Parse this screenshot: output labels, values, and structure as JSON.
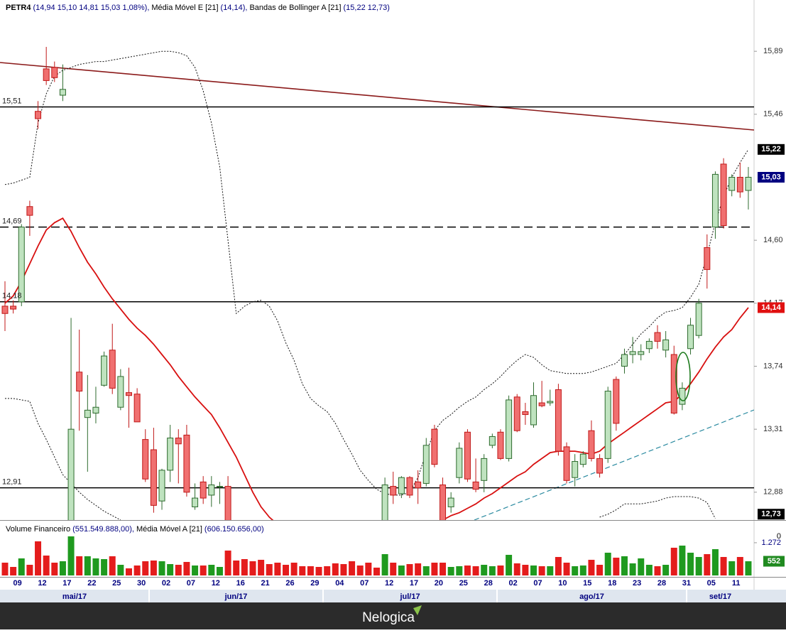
{
  "header": {
    "symbol": "PETR4",
    "quote": "(14,94  15,10  14,81  15,03  1,08%),"
  },
  "chart_data": [
    {
      "type": "candlestick",
      "categories": [
        null,
        "09",
        null,
        null,
        "12",
        null,
        null,
        "17",
        null,
        null,
        "22",
        null,
        null,
        "25",
        null,
        null,
        "30",
        null,
        null,
        "02",
        null,
        null,
        "07",
        null,
        null,
        "12",
        null,
        null,
        "16",
        null,
        null,
        "21",
        null,
        null,
        "26",
        null,
        null,
        "29",
        null,
        null,
        "04",
        null,
        null,
        "07",
        null,
        null,
        "12",
        null,
        null,
        "17",
        null,
        null,
        "20",
        null,
        null,
        "25",
        null,
        null,
        "28",
        null,
        null,
        "02",
        null,
        null,
        "07",
        null,
        null,
        "10",
        null,
        null,
        "15",
        null,
        null,
        "18",
        null,
        null,
        "23",
        null,
        null,
        "28",
        null,
        null,
        "31",
        null,
        null,
        "05",
        null,
        null,
        "11",
        null,
        null
      ],
      "months": [
        "mai/17",
        "jun/17",
        "jul/17",
        "ago/17",
        "set/17"
      ],
      "open": [
        14.15,
        14.15,
        14.18,
        14.83,
        15.48,
        15.77,
        15.78,
        15.59,
        12.5,
        13.7,
        13.39,
        13.42,
        13.61,
        13.85,
        13.46,
        13.56,
        13.55,
        13.24,
        13.17,
        12.82,
        13.03,
        13.25,
        13.27,
        12.78,
        12.95,
        12.86,
        12.92,
        12.92,
        null,
        null,
        null,
        null,
        null,
        null,
        null,
        null,
        null,
        null,
        null,
        null,
        null,
        null,
        null,
        null,
        null,
        null,
        12.55,
        12.92,
        12.87,
        12.98,
        12.95,
        12.94,
        13.31,
        12.93,
        12.78,
        12.98,
        13.29,
        12.95,
        12.96,
        13.2,
        13.29,
        13.11,
        13.53,
        13.43,
        13.34,
        13.49,
        13.49,
        13.58,
        13.19,
        12.98,
        13.07,
        13.3,
        13.11,
        13.11,
        13.65,
        13.74,
        13.82,
        13.82,
        13.86,
        13.97,
        13.85,
        13.82,
        13.48,
        13.86,
        13.95,
        14.55,
        14.69,
        15.12,
        14.94,
        15.03,
        14.94
      ],
      "high": [
        14.32,
        14.19,
        14.71,
        14.87,
        15.55,
        15.92,
        15.82,
        15.8,
        14.07,
        13.99,
        13.68,
        13.6,
        13.84,
        14.03,
        13.72,
        13.73,
        13.59,
        13.31,
        13.32,
        13.04,
        13.34,
        13.31,
        13.34,
        12.94,
        12.99,
        12.99,
        12.95,
        12.99,
        null,
        null,
        null,
        null,
        null,
        null,
        null,
        null,
        null,
        null,
        null,
        null,
        null,
        null,
        null,
        null,
        null,
        null,
        12.98,
        13.02,
        12.99,
        12.99,
        13.03,
        13.25,
        13.34,
        12.98,
        12.88,
        13.22,
        13.31,
        13.11,
        13.14,
        13.28,
        13.31,
        13.54,
        13.55,
        13.49,
        13.63,
        13.64,
        13.58,
        13.62,
        13.22,
        13.14,
        13.16,
        13.37,
        13.14,
        13.6,
        13.67,
        13.86,
        13.94,
        13.89,
        13.93,
        14.02,
        13.98,
        13.88,
        13.63,
        14.07,
        14.2,
        14.64,
        15.07,
        15.16,
        15.05,
        15.13,
        15.1
      ],
      "low": [
        13.98,
        14.1,
        14.15,
        14.63,
        15.36,
        15.66,
        15.68,
        15.55,
        12.4,
        13.3,
        13.02,
        13.35,
        13.6,
        13.55,
        13.44,
        13.32,
        13.36,
        12.95,
        12.74,
        12.76,
        12.95,
        12.94,
        12.85,
        12.76,
        12.8,
        12.78,
        12.8,
        12.5,
        null,
        null,
        null,
        null,
        null,
        null,
        null,
        null,
        null,
        null,
        null,
        null,
        null,
        null,
        null,
        null,
        null,
        null,
        12.5,
        12.8,
        12.84,
        12.84,
        12.8,
        12.92,
        13.05,
        12.5,
        12.74,
        12.94,
        12.95,
        12.88,
        12.88,
        13.18,
        13.1,
        13.09,
        13.29,
        13.34,
        13.32,
        13.46,
        13.47,
        13.13,
        12.94,
        12.92,
        13.05,
        13.09,
        12.98,
        13.08,
        13.3,
        13.69,
        13.76,
        13.78,
        13.83,
        13.86,
        13.8,
        13.41,
        13.44,
        13.82,
        13.93,
        14.27,
        14.61,
        14.68,
        14.9,
        14.89,
        14.81
      ],
      "close": [
        14.1,
        14.13,
        14.69,
        14.77,
        15.43,
        15.69,
        15.71,
        15.63,
        13.31,
        13.57,
        13.44,
        13.46,
        13.81,
        13.59,
        13.67,
        13.54,
        13.36,
        12.97,
        12.79,
        13.03,
        13.25,
        13.21,
        12.88,
        12.84,
        12.84,
        12.93,
        12.92,
        12.55,
        null,
        null,
        null,
        null,
        null,
        null,
        null,
        null,
        null,
        null,
        null,
        null,
        null,
        null,
        null,
        null,
        null,
        null,
        12.93,
        12.86,
        12.98,
        12.86,
        12.91,
        13.2,
        13.07,
        12.55,
        12.84,
        13.18,
        12.97,
        12.9,
        13.11,
        13.26,
        13.11,
        13.51,
        13.3,
        13.41,
        13.54,
        13.47,
        13.5,
        13.16,
        12.96,
        13.09,
        13.14,
        13.11,
        13.01,
        13.57,
        13.35,
        13.82,
        13.84,
        13.84,
        13.91,
        13.91,
        13.92,
        13.42,
        13.59,
        14.02,
        14.17,
        14.4,
        15.05,
        14.7,
        15.03,
        14.93,
        15.03
      ],
      "up_color": "#bfe3bf",
      "up_edge": "#2e6b2e",
      "down_color": "#f07070",
      "down_edge": "#c01818",
      "series": [
        {
          "name": "Média Móvel E [21]",
          "value_label": "(14,14),",
          "color": "#d81010",
          "values": [
            14.17,
            14.22,
            14.32,
            14.44,
            14.56,
            14.67,
            14.72,
            14.75,
            14.66,
            14.55,
            14.45,
            14.37,
            14.28,
            14.2,
            14.13,
            14.06,
            14.0,
            13.95,
            13.89,
            13.82,
            13.75,
            13.67,
            13.6,
            13.53,
            13.47,
            13.41,
            13.32,
            13.22,
            13.12,
            13.0,
            12.88,
            12.78,
            12.71,
            12.66,
            null,
            null,
            null,
            null,
            null,
            null,
            null,
            null,
            null,
            null,
            null,
            null,
            null,
            null,
            null,
            null,
            null,
            null,
            null,
            12.69,
            12.72,
            12.74,
            12.77,
            12.8,
            12.84,
            12.87,
            12.91,
            12.95,
            12.99,
            13.02,
            13.07,
            13.11,
            13.15,
            13.16,
            13.16,
            13.16,
            13.15,
            13.14,
            13.16,
            13.21,
            13.25,
            13.29,
            13.33,
            13.37,
            13.41,
            13.45,
            13.49,
            13.5,
            13.55,
            13.62,
            13.7,
            13.79,
            13.87,
            13.94,
            13.99,
            14.07,
            14.14
          ]
        },
        {
          "name": "Bandas de Bollinger A [21]",
          "value_label": "(15,22  12,73)",
          "color": "#111111",
          "upper": [
            14.98,
            14.99,
            15.01,
            15.03,
            15.4,
            15.6,
            15.72,
            15.76,
            15.78,
            15.8,
            15.81,
            15.82,
            15.82,
            15.83,
            15.84,
            15.85,
            15.86,
            15.87,
            15.88,
            15.89,
            15.89,
            15.88,
            15.86,
            15.78,
            15.62,
            15.4,
            15.1,
            14.6,
            14.1,
            14.15,
            14.18,
            14.19,
            14.15,
            14.05,
            13.9,
            13.78,
            13.62,
            13.52,
            13.47,
            13.43,
            13.35,
            13.24,
            13.14,
            13.03,
            12.96,
            12.9,
            12.87,
            12.86,
            12.86,
            12.88,
            12.98,
            13.15,
            13.3,
            13.37,
            13.41,
            13.46,
            13.5,
            13.53,
            13.58,
            13.62,
            13.67,
            13.73,
            13.78,
            13.82,
            13.8,
            13.75,
            13.71,
            13.7,
            13.69,
            13.69,
            13.69,
            13.7,
            13.72,
            13.74,
            13.76,
            13.82,
            13.89,
            13.96,
            14.01,
            14.07,
            14.11,
            14.12,
            14.14,
            14.21,
            14.3,
            14.5,
            14.72,
            14.9,
            15.03,
            15.13,
            15.22
          ],
          "lower": [
            13.52,
            13.52,
            13.51,
            13.5,
            13.35,
            13.24,
            13.12,
            13.0,
            12.94,
            12.88,
            12.83,
            12.79,
            12.75,
            12.72,
            12.69,
            null,
            null,
            null,
            null,
            null,
            null,
            null,
            null,
            null,
            null,
            null,
            null,
            null,
            null,
            null,
            null,
            null,
            null,
            null,
            null,
            null,
            null,
            null,
            null,
            null,
            null,
            null,
            null,
            null,
            null,
            null,
            null,
            null,
            null,
            null,
            null,
            null,
            null,
            null,
            null,
            null,
            null,
            null,
            null,
            null,
            null,
            null,
            null,
            null,
            null,
            null,
            null,
            null,
            null,
            null,
            null,
            null,
            12.71,
            12.73,
            12.76,
            12.8,
            12.8,
            12.8,
            12.81,
            12.82,
            12.84,
            12.85,
            12.85,
            12.85,
            12.84,
            12.81,
            12.7,
            null,
            null,
            null,
            12.73
          ]
        }
      ],
      "ylim": [
        12.69,
        16.24
      ],
      "yticks": [
        {
          "value": 15.89,
          "label": "15,89"
        },
        {
          "value": 15.46,
          "label": "15,46"
        },
        {
          "value": 14.6,
          "label": "14,60"
        },
        {
          "value": 14.17,
          "label": "14,17"
        },
        {
          "value": 13.74,
          "label": "13,74"
        },
        {
          "value": 13.31,
          "label": "13,31"
        },
        {
          "value": 12.88,
          "label": "12,88"
        }
      ],
      "levels": [
        {
          "value": 15.51,
          "label": "15,51",
          "dashed": false
        },
        {
          "value": 14.69,
          "label": "14,69",
          "dashed": true
        },
        {
          "value": 14.18,
          "label": "14,18",
          "dashed": false
        },
        {
          "value": 12.91,
          "label": "12,91",
          "dashed": false
        }
      ],
      "price_tags": [
        {
          "value": 15.22,
          "label": "15,22",
          "color": "#000000"
        },
        {
          "value": 15.03,
          "label": "15,03",
          "color": "#000080"
        },
        {
          "value": 14.14,
          "label": "14,14",
          "color": "#e01010"
        },
        {
          "value": 12.73,
          "label": "12,73",
          "color": "#000000"
        }
      ]
    },
    {
      "type": "bar",
      "title": "Volume Financeiro",
      "value_label": "(551.549.888,00),",
      "ma_name": "Média Móvel A [21]",
      "ma_label": "(606.150.656,00)",
      "values": [
        497,
        331,
        663,
        414,
        1326,
        773,
        497,
        552,
        1519,
        746,
        746,
        663,
        635,
        746,
        414,
        276,
        387,
        552,
        580,
        552,
        442,
        414,
        525,
        387,
        387,
        414,
        331,
        967,
        580,
        635,
        552,
        608,
        442,
        497,
        414,
        497,
        359,
        359,
        331,
        359,
        470,
        442,
        552,
        387,
        497,
        304,
        829,
        497,
        387,
        442,
        470,
        359,
        497,
        497,
        331,
        359,
        387,
        359,
        414,
        359,
        387,
        801,
        470,
        414,
        387,
        359,
        359,
        718,
        497,
        359,
        387,
        608,
        414,
        884,
        691,
        746,
        470,
        663,
        414,
        359,
        414,
        1077,
        1160,
        884,
        718,
        829,
        1022,
        718,
        552,
        718,
        551.55
      ],
      "up_color": "#1f9a1f",
      "down_color": "#e41c1c",
      "ylim": [
        0,
        2015
      ],
      "yticks": [
        {
          "value": 1272,
          "label": "1.272"
        }
      ],
      "scale_label": "0",
      "tag": {
        "value": 551.55,
        "label": "552",
        "color": "#1f8a1f"
      }
    }
  ],
  "footer": {
    "brand": "Nelogica"
  }
}
